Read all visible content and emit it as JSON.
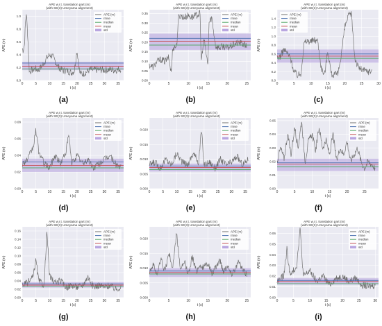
{
  "colors": {
    "ape": "#707070",
    "rmse": "#4c72b0",
    "median": "#55a868",
    "mean": "#c44e52",
    "std": "#b9a6e0",
    "plot_bg": "#eaeaf2",
    "grid": "#ffffff"
  },
  "chart_data": [
    {
      "label": "(a)",
      "type": "line",
      "title": "APE w.r.t. translation part (m)",
      "subtitle": "(with SE(3) Umeyama alignment)",
      "xlabel": "t (s)",
      "ylabel": "APE (m)",
      "xlim": [
        0,
        37
      ],
      "ylim": [
        0,
        1.1
      ],
      "xticks": [
        0,
        5,
        10,
        15,
        20,
        25,
        30,
        35
      ],
      "yticks": [
        0.0,
        0.2,
        0.4,
        0.6,
        0.8,
        1.0
      ],
      "yticklabels": [
        "0.0",
        "0.2",
        "0.4",
        "0.6",
        "0.8",
        "1.0"
      ],
      "legend": [
        "APE (m)",
        "rmse",
        "median",
        "mean",
        "std"
      ],
      "legend_position": "top-right",
      "stats": {
        "rmse": 0.27,
        "median": 0.18,
        "mean": 0.22,
        "std_low": 0.16,
        "std_high": 0.29
      },
      "x": [
        0,
        0.3,
        0.8,
        1.2,
        1.5,
        2.0,
        2.6,
        3.0,
        4,
        5,
        6,
        7,
        8,
        9,
        10,
        11,
        12,
        13,
        14,
        15,
        16,
        17,
        18,
        19,
        20,
        20.5,
        21,
        22,
        23,
        24,
        25,
        26,
        28,
        30,
        32,
        34,
        36
      ],
      "y": [
        0.5,
        0.47,
        0.55,
        0.9,
        1.05,
        0.7,
        0.12,
        0.15,
        0.17,
        0.18,
        0.16,
        0.22,
        0.28,
        0.35,
        0.4,
        0.38,
        0.3,
        0.22,
        0.18,
        0.15,
        0.16,
        0.14,
        0.12,
        0.15,
        0.47,
        0.3,
        0.12,
        0.1,
        0.12,
        0.15,
        0.17,
        0.16,
        0.17,
        0.16,
        0.17,
        0.16,
        0.18
      ]
    },
    {
      "label": "(b)",
      "type": "line",
      "title": "APE w.r.t. translation part (m)",
      "subtitle": "(with SE(3) Umeyama alignment)",
      "xlabel": "t (s)",
      "ylabel": "APE (m)",
      "xlim": [
        0,
        26
      ],
      "ylim": [
        0,
        0.37
      ],
      "xticks": [
        0,
        5,
        10,
        15,
        20,
        25
      ],
      "yticks": [
        0.0,
        0.05,
        0.1,
        0.15,
        0.2,
        0.25,
        0.3,
        0.35
      ],
      "yticklabels": [
        "0.00",
        "0.05",
        "0.10",
        "0.15",
        "0.20",
        "0.25",
        "0.30",
        "0.35"
      ],
      "legend": [
        "APE (m)",
        "rmse",
        "median",
        "mean",
        "std"
      ],
      "legend_position": "top-right",
      "stats": {
        "rmse": 0.22,
        "median": 0.185,
        "mean": 0.205,
        "std_low": 0.16,
        "std_high": 0.245
      },
      "x": [
        0,
        1,
        2,
        3,
        4,
        5,
        5.6,
        6,
        7,
        7.5,
        8,
        9,
        10,
        11,
        12,
        13,
        13.3,
        14,
        15,
        15.3,
        16,
        17,
        18,
        19,
        20,
        21,
        22,
        23,
        24,
        25
      ],
      "y": [
        0.08,
        0.07,
        0.1,
        0.11,
        0.1,
        0.12,
        0.04,
        0.17,
        0.18,
        0.33,
        0.34,
        0.33,
        0.34,
        0.33,
        0.34,
        0.35,
        0.1,
        0.22,
        0.08,
        0.3,
        0.33,
        0.18,
        0.17,
        0.18,
        0.17,
        0.18,
        0.19,
        0.2,
        0.19,
        0.18
      ]
    },
    {
      "label": "(c)",
      "type": "line",
      "title": "APE w.r.t. translation part (m)",
      "subtitle": "(with SE(3) Umeyama alignment)",
      "xlabel": "t (s)",
      "ylabel": "APE (m)",
      "xlim": [
        0,
        30
      ],
      "ylim": [
        0,
        1.6
      ],
      "xticks": [
        0,
        5,
        10,
        15,
        20,
        25,
        30
      ],
      "yticks": [
        0.0,
        0.2,
        0.4,
        0.6,
        0.8,
        1.0,
        1.2,
        1.4
      ],
      "yticklabels": [
        "0.0",
        "0.2",
        "0.4",
        "0.6",
        "0.8",
        "1.0",
        "1.2",
        "1.4"
      ],
      "legend": [
        "APE (m)",
        "rmse",
        "median",
        "mean",
        "std"
      ],
      "legend_position": "top-left",
      "stats": {
        "rmse": 0.6,
        "median": 0.5,
        "mean": 0.55,
        "std_low": 0.4,
        "std_high": 0.7
      },
      "x": [
        0,
        1,
        2,
        3,
        4,
        5,
        6,
        7,
        8,
        9,
        10,
        11,
        12,
        13,
        14,
        15,
        16,
        17,
        18,
        19,
        20,
        21,
        22,
        23,
        24,
        25,
        26,
        27,
        28
      ],
      "y": [
        0.5,
        0.55,
        0.7,
        0.62,
        0.5,
        0.2,
        0.12,
        0.15,
        0.85,
        0.9,
        0.88,
        0.92,
        0.9,
        0.3,
        0.12,
        0.7,
        0.15,
        0.12,
        0.15,
        0.6,
        1.2,
        1.45,
        1.5,
        0.5,
        0.3,
        0.25,
        0.22,
        0.2,
        0.22
      ]
    },
    {
      "label": "(d)",
      "type": "line",
      "title": "APE w.r.t. translation part (m)",
      "subtitle": "(with SE(3) Umeyama alignment)",
      "xlabel": "t (s)",
      "ylabel": "APE (m)",
      "xlim": [
        0,
        37
      ],
      "ylim": [
        0,
        0.085
      ],
      "xticks": [
        0,
        5,
        10,
        15,
        20,
        25,
        30,
        35
      ],
      "yticks": [
        0.0,
        0.02,
        0.04,
        0.06,
        0.08
      ],
      "yticklabels": [
        "0.00",
        "0.02",
        "0.04",
        "0.06",
        "0.08"
      ],
      "legend": [
        "APE (m)",
        "rmse",
        "median",
        "mean",
        "std"
      ],
      "legend_position": "top-right",
      "stats": {
        "rmse": 0.032,
        "median": 0.025,
        "mean": 0.028,
        "std_low": 0.02,
        "std_high": 0.036
      },
      "x": [
        0,
        2,
        4,
        5,
        6,
        8,
        10,
        12,
        14,
        16,
        17,
        18,
        20,
        22,
        24,
        26,
        28,
        30,
        32,
        34,
        36
      ],
      "y": [
        0.03,
        0.035,
        0.05,
        0.07,
        0.045,
        0.03,
        0.025,
        0.04,
        0.03,
        0.045,
        0.065,
        0.03,
        0.04,
        0.03,
        0.035,
        0.025,
        0.03,
        0.035,
        0.04,
        0.03,
        0.025
      ]
    },
    {
      "label": "(e)",
      "type": "line",
      "title": "APE w.r.t. translation part (m)",
      "subtitle": "(with SE(3) Umeyama alignment)",
      "xlabel": "t (s)",
      "ylabel": "APE (m)",
      "xlim": [
        0,
        37
      ],
      "ylim": [
        0,
        0.024
      ],
      "xticks": [
        0,
        5,
        10,
        15,
        20,
        25,
        30,
        35
      ],
      "yticks": [
        0.0,
        0.005,
        0.01,
        0.015,
        0.02
      ],
      "yticklabels": [
        "0.000",
        "0.005",
        "0.010",
        "0.015",
        "0.020"
      ],
      "legend": [
        "APE (m)",
        "rmse",
        "median",
        "mean",
        "std"
      ],
      "legend_position": "top-right",
      "stats": {
        "rmse": 0.0077,
        "median": 0.0065,
        "mean": 0.0072,
        "std_low": 0.0058,
        "std_high": 0.0085
      },
      "x": [
        0,
        2,
        4,
        6,
        8,
        10,
        12,
        14,
        16,
        18,
        19,
        20,
        22,
        24,
        26,
        28,
        30,
        32,
        34,
        36
      ],
      "y": [
        0.008,
        0.009,
        0.007,
        0.01,
        0.008,
        0.012,
        0.009,
        0.008,
        0.012,
        0.009,
        0.02,
        0.008,
        0.009,
        0.007,
        0.01,
        0.008,
        0.009,
        0.011,
        0.008,
        0.01
      ]
    },
    {
      "label": "(f)",
      "type": "line",
      "title": "APE w.r.t. translation part (m)",
      "subtitle": "(with SE(3) Umeyama alignment)",
      "xlabel": "t (s)",
      "ylabel": "APE (m)",
      "xlim": [
        0,
        29
      ],
      "ylim": [
        0,
        0.052
      ],
      "xticks": [
        0,
        5,
        10,
        15,
        20,
        25
      ],
      "yticks": [
        0.0,
        0.01,
        0.02,
        0.03,
        0.04,
        0.05
      ],
      "yticklabels": [
        "0.00",
        "0.01",
        "0.02",
        "0.03",
        "0.04",
        "0.05"
      ],
      "legend": [
        "APE (m)",
        "rmse",
        "median",
        "mean",
        "std"
      ],
      "legend_position": "top-right",
      "stats": {
        "rmse": 0.019,
        "median": 0.016,
        "mean": 0.018,
        "std_low": 0.013,
        "std_high": 0.022
      },
      "x": [
        0,
        1,
        2,
        3,
        4,
        5,
        6,
        7,
        8,
        9,
        10,
        11,
        12,
        13,
        14,
        15,
        16,
        17,
        18,
        19,
        20,
        21,
        22,
        23,
        24,
        25,
        26,
        27,
        28
      ],
      "y": [
        0.02,
        0.03,
        0.022,
        0.04,
        0.025,
        0.045,
        0.03,
        0.05,
        0.02,
        0.035,
        0.04,
        0.028,
        0.045,
        0.03,
        0.035,
        0.025,
        0.04,
        0.02,
        0.03,
        0.025,
        0.035,
        0.02,
        0.025,
        0.03,
        0.02,
        0.015,
        0.02,
        0.018,
        0.015
      ]
    },
    {
      "label": "(g)",
      "type": "line",
      "title": "APE w.r.t. translation part (m)",
      "subtitle": "(with SE(3) Umeyama alignment)",
      "xlabel": "t (s)",
      "ylabel": "APE (m)",
      "xlim": [
        0,
        37
      ],
      "ylim": [
        0,
        0.17
      ],
      "xticks": [
        0,
        5,
        10,
        15,
        20,
        25,
        30,
        35
      ],
      "yticks": [
        0.0,
        0.02,
        0.04,
        0.06,
        0.08,
        0.1,
        0.12,
        0.14,
        0.16
      ],
      "yticklabels": [
        "0.00",
        "0.02",
        "0.04",
        "0.06",
        "0.08",
        "0.10",
        "0.12",
        "0.14",
        "0.16"
      ],
      "legend": [
        "APE (m)",
        "rmse",
        "median",
        "mean",
        "std"
      ],
      "legend_position": "top-right",
      "stats": {
        "rmse": 0.033,
        "median": 0.027,
        "mean": 0.03,
        "std_low": 0.024,
        "std_high": 0.037
      },
      "x": [
        0,
        2,
        4,
        5,
        6,
        8,
        9,
        10,
        12,
        14,
        16,
        18,
        20,
        22,
        24,
        26,
        28,
        30,
        32,
        34,
        36
      ],
      "y": [
        0.03,
        0.035,
        0.05,
        0.09,
        0.04,
        0.03,
        0.16,
        0.05,
        0.035,
        0.04,
        0.025,
        0.03,
        0.025,
        0.03,
        0.05,
        0.025,
        0.03,
        0.025,
        0.03,
        0.02,
        0.025
      ]
    },
    {
      "label": "(h)",
      "type": "line",
      "title": "APE w.r.t. translation part (m)",
      "subtitle": "(with SE(3) Umeyama alignment)",
      "xlabel": "t (s)",
      "ylabel": "APE (m)",
      "xlim": [
        0,
        26
      ],
      "ylim": [
        0,
        0.024
      ],
      "xticks": [
        0,
        5,
        10,
        15,
        20,
        25
      ],
      "yticks": [
        0.0,
        0.005,
        0.01,
        0.015,
        0.02
      ],
      "yticklabels": [
        "0.000",
        "0.005",
        "0.010",
        "0.015",
        "0.020"
      ],
      "legend": [
        "APE (m)",
        "rmse",
        "median",
        "mean",
        "std"
      ],
      "legend_position": "top-right",
      "stats": {
        "rmse": 0.009,
        "median": 0.008,
        "mean": 0.0085,
        "std_low": 0.007,
        "std_high": 0.01
      },
      "x": [
        0,
        1,
        2,
        3,
        4,
        5,
        6,
        7,
        8,
        9,
        10,
        11,
        12,
        13,
        14,
        15,
        16,
        17,
        18,
        19,
        20,
        21,
        22,
        23,
        24,
        25
      ],
      "y": [
        0.009,
        0.011,
        0.008,
        0.013,
        0.009,
        0.015,
        0.01,
        0.022,
        0.009,
        0.012,
        0.008,
        0.014,
        0.009,
        0.011,
        0.01,
        0.012,
        0.008,
        0.01,
        0.013,
        0.009,
        0.011,
        0.008,
        0.01,
        0.012,
        0.009,
        0.008
      ]
    },
    {
      "label": "(i)",
      "type": "line",
      "title": "APE w.r.t. translation part (m)",
      "subtitle": "(with SE(3) Umeyama alignment)",
      "xlabel": "t (s)",
      "ylabel": "APE (m)",
      "xlim": [
        0,
        31
      ],
      "ylim": [
        0,
        0.066
      ],
      "xticks": [
        0,
        5,
        10,
        15,
        20,
        25,
        30
      ],
      "yticks": [
        0.0,
        0.01,
        0.02,
        0.03,
        0.04,
        0.05,
        0.06
      ],
      "yticklabels": [
        "0.00",
        "0.01",
        "0.02",
        "0.03",
        "0.04",
        "0.05",
        "0.06"
      ],
      "legend": [
        "APE (m)",
        "rmse",
        "median",
        "mean",
        "std"
      ],
      "legend_position": "top-right",
      "stats": {
        "rmse": 0.016,
        "median": 0.013,
        "mean": 0.015,
        "std_low": 0.012,
        "std_high": 0.018
      },
      "x": [
        0,
        2,
        3,
        4,
        6,
        7,
        8,
        10,
        12,
        14,
        16,
        18,
        20,
        22,
        24,
        26,
        28,
        30
      ],
      "y": [
        0.015,
        0.02,
        0.045,
        0.02,
        0.03,
        0.065,
        0.02,
        0.025,
        0.015,
        0.02,
        0.012,
        0.018,
        0.02,
        0.015,
        0.018,
        0.012,
        0.01,
        0.012
      ]
    }
  ]
}
